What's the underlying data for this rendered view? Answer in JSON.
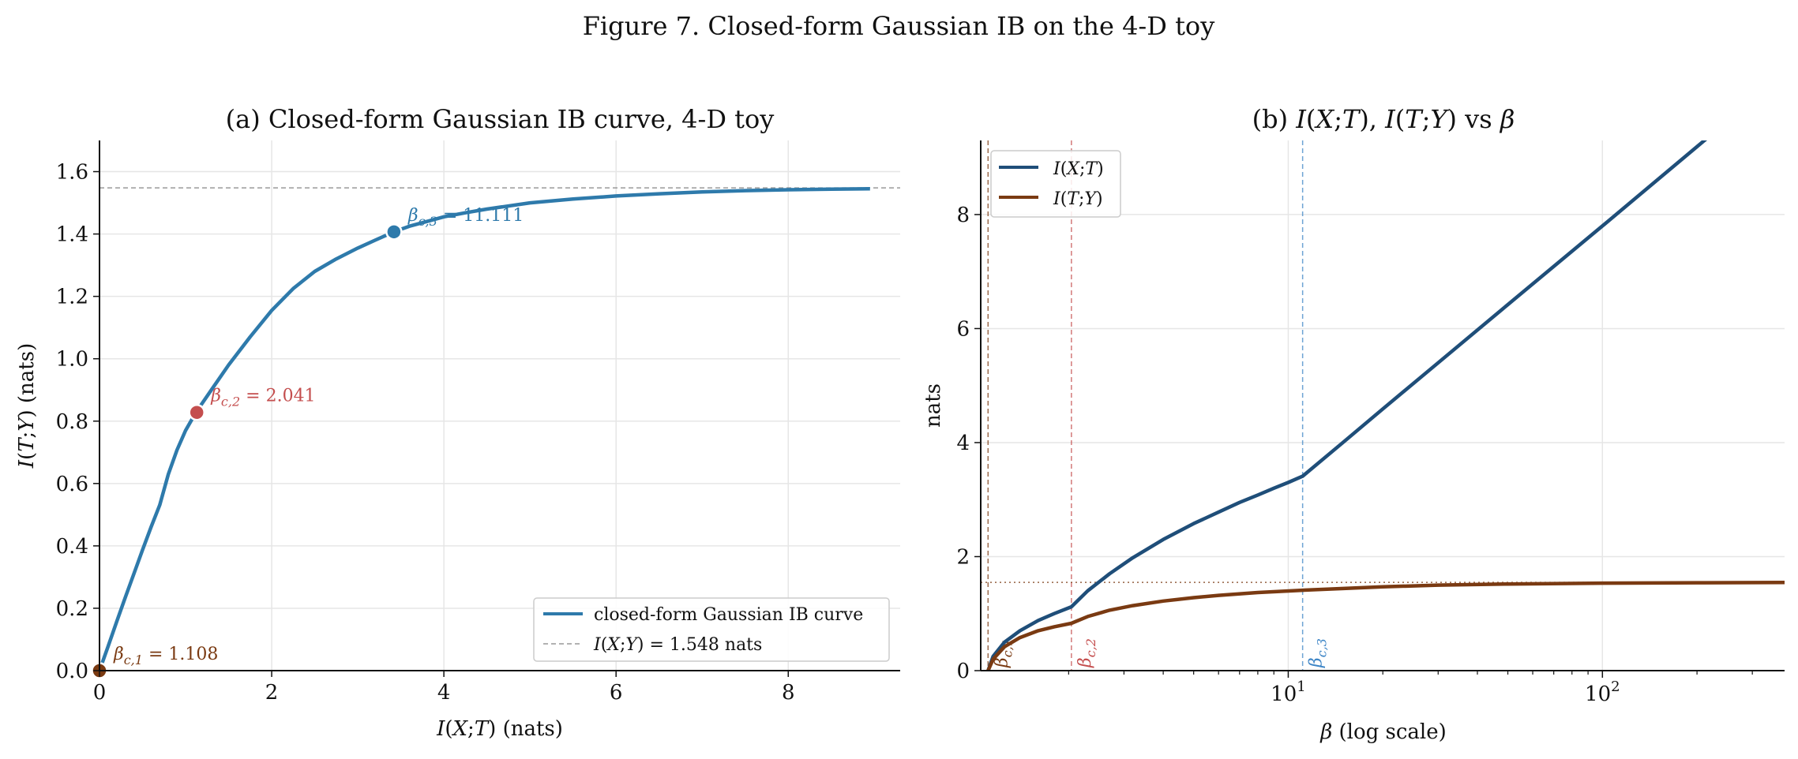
{
  "figure_title": "Figure 7. Closed-form Gaussian IB on the 4-D toy",
  "colors": {
    "curve_a": "#2e7aab",
    "ixt": "#1f4e79",
    "ity": "#7a3a12",
    "beta1": "#7a3a12",
    "beta2": "#c44e4e",
    "beta3": "#3d85c6",
    "ref": "#999999"
  },
  "chart_data": [
    {
      "id": "a",
      "type": "line",
      "title": "(a) Closed-form Gaussian IB curve, 4-D toy",
      "xlabel": "I(X;T)  (nats)",
      "ylabel": "I(T;Y)  (nats)",
      "xlim": [
        0,
        9.3
      ],
      "ylim": [
        0,
        1.7
      ],
      "xticks": [
        0,
        2,
        4,
        6,
        8
      ],
      "yticks": [
        0.0,
        0.2,
        0.4,
        0.6,
        0.8,
        1.0,
        1.2,
        1.4,
        1.6
      ],
      "grid": true,
      "legend_position": "lower-right",
      "series": [
        {
          "name": "closed-form Gaussian IB curve",
          "x": [
            0,
            0.1,
            0.2,
            0.3,
            0.4,
            0.5,
            0.6,
            0.7,
            0.8,
            0.9,
            1.0,
            1.12,
            1.3,
            1.5,
            1.75,
            2.0,
            2.25,
            2.5,
            2.75,
            3.0,
            3.2,
            3.42,
            3.6,
            3.8,
            4.0,
            4.25,
            4.5,
            5.0,
            5.5,
            6.0,
            6.5,
            7.0,
            7.5,
            8.0,
            8.5,
            8.95
          ],
          "y": [
            0,
            0.078,
            0.157,
            0.235,
            0.311,
            0.387,
            0.461,
            0.531,
            0.63,
            0.707,
            0.77,
            0.828,
            0.9,
            0.98,
            1.07,
            1.155,
            1.225,
            1.28,
            1.32,
            1.355,
            1.38,
            1.407,
            1.425,
            1.44,
            1.455,
            1.468,
            1.48,
            1.5,
            1.512,
            1.522,
            1.529,
            1.535,
            1.539,
            1.542,
            1.544,
            1.545
          ]
        }
      ],
      "reference_line": {
        "y": 1.548,
        "label": "I(X;Y) = 1.548 nats"
      },
      "points": [
        {
          "x": 0,
          "y": 0,
          "label_base": "β",
          "label_sub": "c,1",
          "label_value": " = 1.108",
          "color_key": "beta1"
        },
        {
          "x": 1.13,
          "y": 0.828,
          "label_base": "β",
          "label_sub": "c,2",
          "label_value": " = 2.041",
          "color_key": "beta2"
        },
        {
          "x": 3.42,
          "y": 1.407,
          "label_base": "β",
          "label_sub": "c,3",
          "label_value": " = 11.111",
          "color_key": "curve_a"
        }
      ]
    },
    {
      "id": "b",
      "type": "line",
      "title": "(b) I(X;T), I(T;Y) vs β",
      "xlabel": "β  (log scale)",
      "ylabel": "nats",
      "xscale": "log",
      "xlim": [
        1.05,
        380
      ],
      "ylim": [
        0,
        9.3
      ],
      "xticks": [
        10,
        100
      ],
      "xtick_labels": [
        {
          "base": "10",
          "exp": "1"
        },
        {
          "base": "10",
          "exp": "2"
        }
      ],
      "yticks": [
        0,
        2,
        4,
        6,
        8
      ],
      "grid": true,
      "legend_position": "upper-left",
      "series": [
        {
          "name": "I(X;T)",
          "color_key": "ixt",
          "x": [
            1.108,
            1.15,
            1.25,
            1.4,
            1.6,
            1.8,
            2.041,
            2.3,
            2.7,
            3.2,
            4,
            5,
            6,
            7,
            8,
            9,
            10,
            11.111,
            15,
            20,
            30,
            50,
            100,
            200,
            380
          ],
          "y": [
            0,
            0.25,
            0.5,
            0.7,
            0.88,
            1.0,
            1.12,
            1.4,
            1.7,
            1.98,
            2.3,
            2.58,
            2.78,
            2.95,
            3.08,
            3.2,
            3.3,
            3.41,
            4.01,
            4.59,
            5.4,
            6.42,
            7.8,
            9.19,
            10.48
          ]
        },
        {
          "name": "I(T;Y)",
          "color_key": "ity",
          "x": [
            1.108,
            1.15,
            1.25,
            1.4,
            1.6,
            1.8,
            2.041,
            2.3,
            2.7,
            3.2,
            4,
            5,
            6,
            8,
            11.111,
            15,
            20,
            30,
            50,
            100,
            200,
            380
          ],
          "y": [
            0,
            0.2,
            0.42,
            0.58,
            0.7,
            0.77,
            0.83,
            0.95,
            1.06,
            1.14,
            1.22,
            1.28,
            1.32,
            1.37,
            1.41,
            1.44,
            1.47,
            1.5,
            1.52,
            1.535,
            1.542,
            1.546
          ]
        }
      ],
      "reference_line": {
        "y": 1.548
      },
      "vlines": [
        {
          "x": 1.108,
          "label_base": "β",
          "label_sub": "c,1",
          "color_key": "beta1"
        },
        {
          "x": 2.041,
          "label_base": "β",
          "label_sub": "c,2",
          "color_key": "beta2"
        },
        {
          "x": 11.111,
          "label_base": "β",
          "label_sub": "c,3",
          "color_key": "beta3"
        }
      ]
    }
  ]
}
